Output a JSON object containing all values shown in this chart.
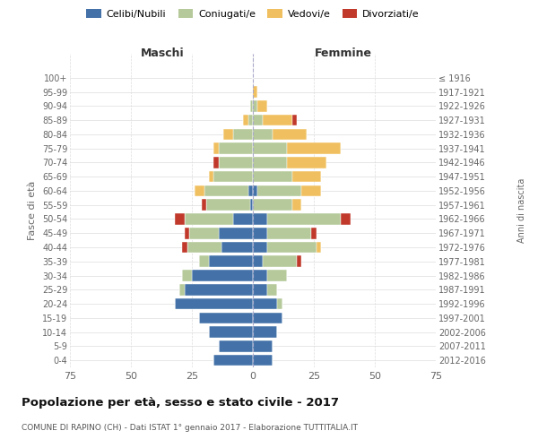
{
  "age_groups": [
    "0-4",
    "5-9",
    "10-14",
    "15-19",
    "20-24",
    "25-29",
    "30-34",
    "35-39",
    "40-44",
    "45-49",
    "50-54",
    "55-59",
    "60-64",
    "65-69",
    "70-74",
    "75-79",
    "80-84",
    "85-89",
    "90-94",
    "95-99",
    "100+"
  ],
  "birth_years": [
    "2012-2016",
    "2007-2011",
    "2002-2006",
    "1997-2001",
    "1992-1996",
    "1987-1991",
    "1982-1986",
    "1977-1981",
    "1972-1976",
    "1967-1971",
    "1962-1966",
    "1957-1961",
    "1952-1956",
    "1947-1951",
    "1942-1946",
    "1937-1941",
    "1932-1936",
    "1927-1931",
    "1922-1926",
    "1917-1921",
    "≤ 1916"
  ],
  "maschi": {
    "celibi": [
      16,
      14,
      18,
      22,
      32,
      28,
      25,
      18,
      13,
      14,
      8,
      1,
      2,
      0,
      0,
      0,
      0,
      0,
      0,
      0,
      0
    ],
    "coniugati": [
      0,
      0,
      0,
      0,
      0,
      2,
      4,
      4,
      14,
      12,
      20,
      18,
      18,
      16,
      14,
      14,
      8,
      2,
      1,
      0,
      0
    ],
    "vedovi": [
      0,
      0,
      0,
      0,
      0,
      0,
      0,
      0,
      0,
      0,
      0,
      0,
      4,
      2,
      0,
      2,
      4,
      2,
      0,
      0,
      0
    ],
    "divorziati": [
      0,
      0,
      0,
      0,
      0,
      0,
      0,
      0,
      2,
      2,
      4,
      2,
      0,
      0,
      2,
      0,
      0,
      0,
      0,
      0,
      0
    ]
  },
  "femmine": {
    "nubili": [
      8,
      8,
      10,
      12,
      10,
      6,
      6,
      4,
      6,
      6,
      6,
      0,
      2,
      0,
      0,
      0,
      0,
      0,
      0,
      0,
      0
    ],
    "coniugate": [
      0,
      0,
      0,
      0,
      2,
      4,
      8,
      14,
      20,
      18,
      30,
      16,
      18,
      16,
      14,
      14,
      8,
      4,
      2,
      0,
      0
    ],
    "vedove": [
      0,
      0,
      0,
      0,
      0,
      0,
      0,
      0,
      2,
      0,
      0,
      4,
      8,
      12,
      16,
      22,
      14,
      12,
      4,
      2,
      0
    ],
    "divorziate": [
      0,
      0,
      0,
      0,
      0,
      0,
      0,
      2,
      0,
      2,
      4,
      0,
      0,
      0,
      0,
      0,
      0,
      2,
      0,
      0,
      0
    ]
  },
  "colors": {
    "celibi": "#4472a8",
    "coniugati": "#b5c99a",
    "vedovi": "#f0c060",
    "divorziati": "#c0392b"
  },
  "xlim": 75,
  "title": "Popolazione per età, sesso e stato civile - 2017",
  "subtitle": "COMUNE DI RAPINO (CH) - Dati ISTAT 1° gennaio 2017 - Elaborazione TUTTITALIA.IT",
  "xlabel_left": "Maschi",
  "xlabel_right": "Femmine",
  "ylabel": "Fasce di età",
  "ylabel_right": "Anni di nascita",
  "legend_labels": [
    "Celibi/Nubili",
    "Coniugati/e",
    "Vedovi/e",
    "Divorziati/e"
  ],
  "bg_color": "#ffffff",
  "plot_bg": "#ffffff"
}
